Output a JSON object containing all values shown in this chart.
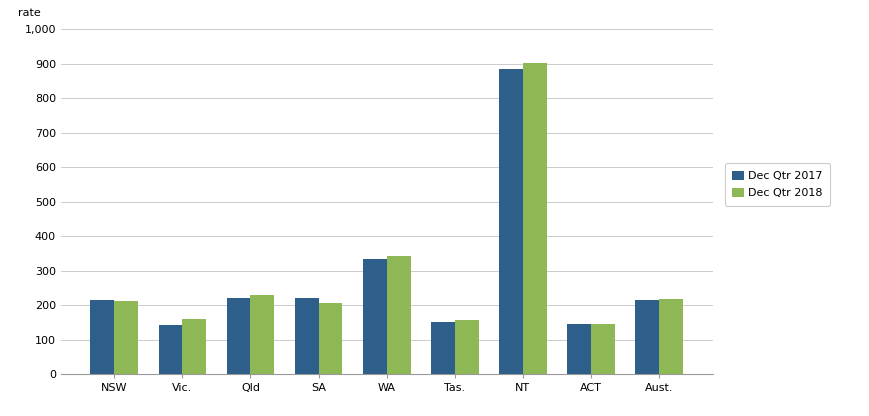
{
  "categories": [
    "NSW",
    "Vic.",
    "Qld",
    "SA",
    "WA",
    "Tas.",
    "NT",
    "ACT",
    "Aust."
  ],
  "dec2017": [
    215,
    143,
    222,
    222,
    335,
    152,
    885,
    147,
    215
  ],
  "dec2018": [
    212,
    160,
    230,
    207,
    343,
    157,
    902,
    147,
    218
  ],
  "color_2017": "#2E5F8A",
  "color_2018": "#8DB855",
  "ylabel": "rate",
  "ylim": [
    0,
    1000
  ],
  "ytick_values": [
    0,
    100,
    200,
    300,
    400,
    500,
    600,
    700,
    800,
    900,
    1000
  ],
  "legend_labels": [
    "Dec Qtr 2017",
    "Dec Qtr 2018"
  ],
  "bar_width": 0.35,
  "background_color": "#ffffff",
  "grid_color": "#cccccc",
  "ylabel_fontsize": 8,
  "tick_fontsize": 8,
  "legend_fontsize": 8
}
